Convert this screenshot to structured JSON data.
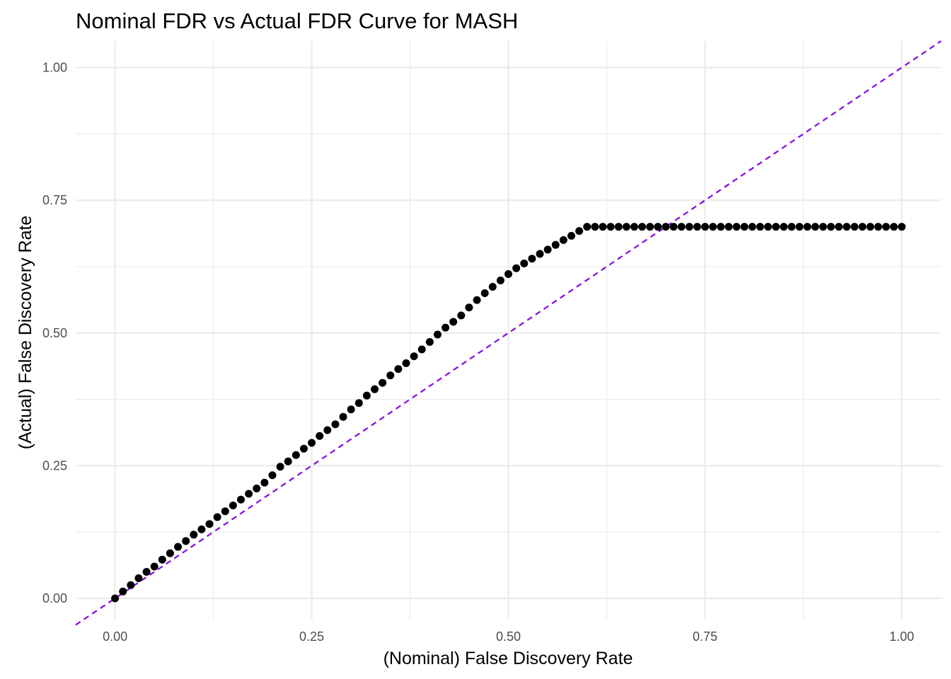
{
  "chart_data": {
    "type": "scatter",
    "title": "Nominal FDR vs Actual FDR Curve for MASH",
    "xlabel": "(Nominal) False Discovery Rate",
    "ylabel": "(Actual) False Discovery Rate",
    "xlim": [
      -0.05,
      1.05
    ],
    "ylim": [
      -0.04,
      1.05
    ],
    "x_ticks": [
      0,
      0.25,
      0.5,
      0.75,
      1
    ],
    "x_tick_labels": [
      "0.00",
      "0.25",
      "0.50",
      "0.75",
      "1.00"
    ],
    "y_ticks": [
      0,
      0.25,
      0.5,
      0.75,
      1
    ],
    "y_tick_labels": [
      "0.00",
      "0.25",
      "0.50",
      "0.75",
      "1.00"
    ],
    "grid": true,
    "series": [
      {
        "type": "points",
        "color": "#000000",
        "x": [
          0,
          0.01,
          0.02,
          0.03,
          0.04,
          0.05,
          0.06,
          0.07,
          0.08,
          0.09,
          0.1,
          0.11,
          0.12,
          0.13,
          0.14,
          0.15,
          0.16,
          0.17,
          0.18,
          0.19,
          0.2,
          0.21,
          0.22,
          0.23,
          0.24,
          0.25,
          0.26,
          0.27,
          0.28,
          0.29,
          0.3,
          0.31,
          0.32,
          0.33,
          0.34,
          0.35,
          0.36,
          0.37,
          0.38,
          0.39,
          0.4,
          0.41,
          0.42,
          0.43,
          0.44,
          0.45,
          0.46,
          0.47,
          0.48,
          0.49,
          0.5,
          0.51,
          0.52,
          0.53,
          0.54,
          0.55,
          0.56,
          0.57,
          0.58,
          0.59,
          0.6,
          0.61,
          0.62,
          0.63,
          0.64,
          0.65,
          0.66,
          0.67,
          0.68,
          0.69,
          0.7,
          0.71,
          0.72,
          0.73,
          0.74,
          0.75,
          0.76,
          0.77,
          0.78,
          0.79,
          0.8,
          0.81,
          0.82,
          0.83,
          0.84,
          0.85,
          0.86,
          0.87,
          0.88,
          0.89,
          0.9,
          0.91,
          0.92,
          0.93,
          0.94,
          0.95,
          0.96,
          0.97,
          0.98,
          0.99,
          1
        ],
        "y": [
          0,
          0.013,
          0.025,
          0.038,
          0.05,
          0.06,
          0.073,
          0.085,
          0.097,
          0.108,
          0.12,
          0.13,
          0.14,
          0.153,
          0.164,
          0.175,
          0.186,
          0.197,
          0.207,
          0.218,
          0.232,
          0.248,
          0.258,
          0.27,
          0.282,
          0.293,
          0.306,
          0.317,
          0.328,
          0.342,
          0.356,
          0.368,
          0.382,
          0.394,
          0.406,
          0.42,
          0.432,
          0.443,
          0.456,
          0.469,
          0.483,
          0.497,
          0.51,
          0.521,
          0.533,
          0.548,
          0.562,
          0.575,
          0.587,
          0.599,
          0.611,
          0.622,
          0.631,
          0.64,
          0.649,
          0.657,
          0.666,
          0.675,
          0.683,
          0.692,
          0.7,
          0.7,
          0.7,
          0.7,
          0.7,
          0.7,
          0.7,
          0.7,
          0.7,
          0.7,
          0.7,
          0.7,
          0.7,
          0.7,
          0.7,
          0.7,
          0.7,
          0.7,
          0.7,
          0.7,
          0.7,
          0.7,
          0.7,
          0.7,
          0.7,
          0.7,
          0.7,
          0.7,
          0.7,
          0.7,
          0.7,
          0.7,
          0.7,
          0.7,
          0.7,
          0.7,
          0.7,
          0.7,
          0.7,
          0.7,
          0.7
        ]
      },
      {
        "type": "reference-line",
        "style": "dashed",
        "color": "#8a0fe0",
        "slope": 1,
        "intercept": 0
      }
    ]
  }
}
